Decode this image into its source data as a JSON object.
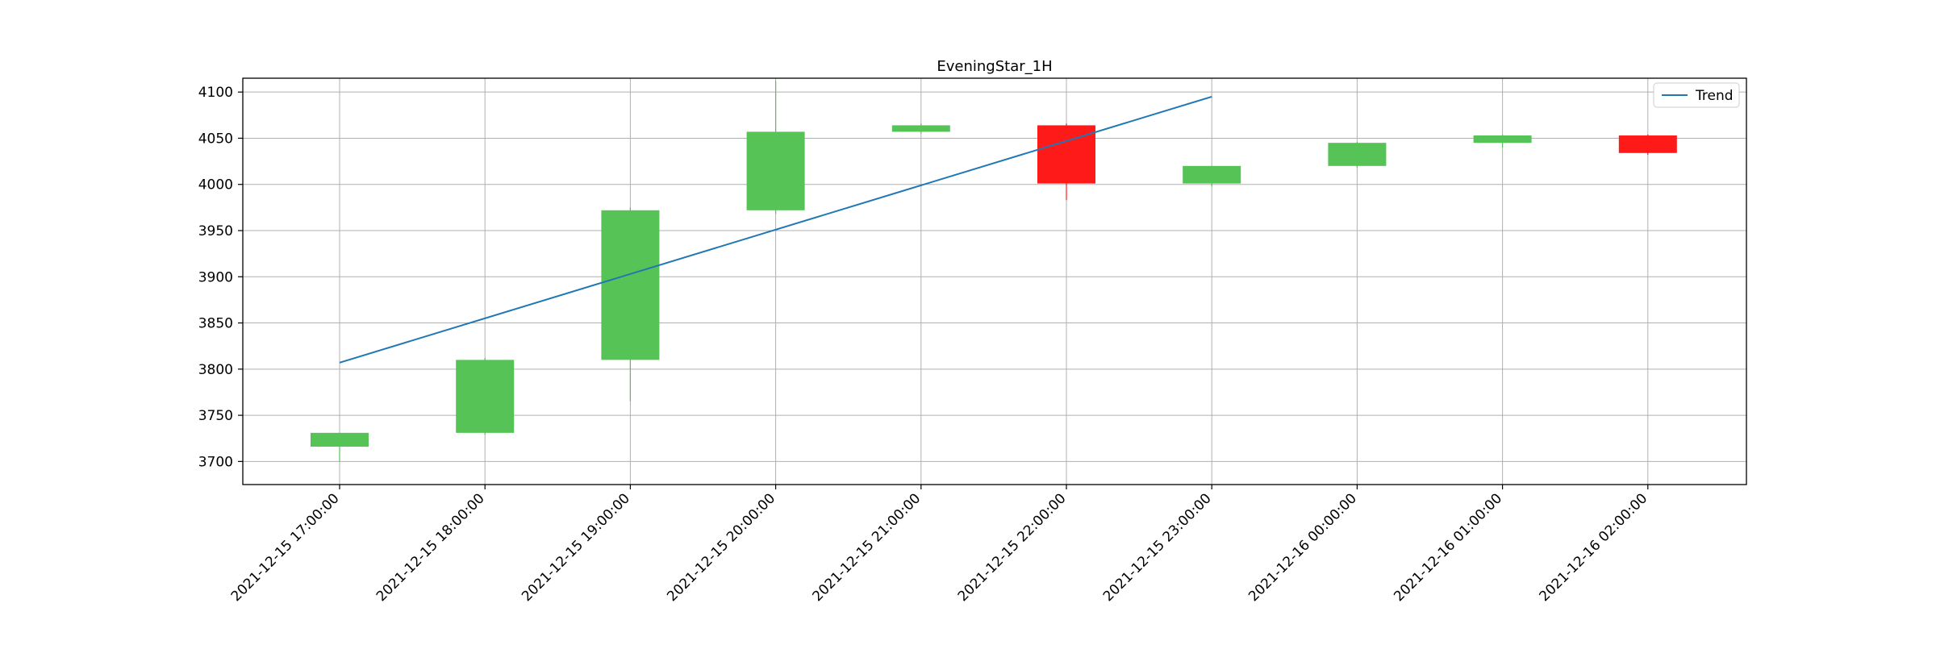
{
  "chart_data": {
    "type": "candlestick",
    "title": "EveningStar_1H",
    "xlabel": "",
    "ylabel": "",
    "categories": [
      "2021-12-15 17:00:00",
      "2021-12-15 18:00:00",
      "2021-12-15 19:00:00",
      "2021-12-15 20:00:00",
      "2021-12-15 21:00:00",
      "2021-12-15 22:00:00",
      "2021-12-15 23:00:00",
      "2021-12-16 00:00:00",
      "2021-12-16 01:00:00",
      "2021-12-16 02:00:00"
    ],
    "candles": [
      {
        "open": 3716,
        "close": 3731,
        "high": 3731,
        "low": 3700
      },
      {
        "open": 3731,
        "close": 3810,
        "high": 3812,
        "low": 3729
      },
      {
        "open": 3810,
        "close": 3972,
        "high": 3975,
        "low": 3765
      },
      {
        "open": 3972,
        "close": 4057,
        "high": 4112,
        "low": 3968
      },
      {
        "open": 4057,
        "close": 4064,
        "high": 4066,
        "low": 4055
      },
      {
        "open": 4064,
        "close": 4001,
        "high": 4066,
        "low": 3983
      },
      {
        "open": 4001,
        "close": 4020,
        "high": 4020,
        "low": 3998
      },
      {
        "open": 4020,
        "close": 4045,
        "high": 4046,
        "low": 4018
      },
      {
        "open": 4045,
        "close": 4053,
        "high": 4054,
        "low": 4040
      },
      {
        "open": 4053,
        "close": 4034,
        "high": 4054,
        "low": 4032
      }
    ],
    "series": [
      {
        "name": "Trend",
        "type": "line",
        "x": [
          "2021-12-15 17:00:00",
          "2021-12-15 23:00:00"
        ],
        "values": [
          3807,
          4095
        ]
      }
    ],
    "ylim": [
      3675,
      4115
    ],
    "yticks": [
      3700,
      3750,
      3800,
      3850,
      3900,
      3950,
      4000,
      4050,
      4100
    ],
    "grid": true,
    "legend_position": "top-right",
    "colors": {
      "up": "#55c355",
      "down": "#ff1a1a",
      "trend": "#1f77b4",
      "grid": "#b0b0b0"
    }
  }
}
